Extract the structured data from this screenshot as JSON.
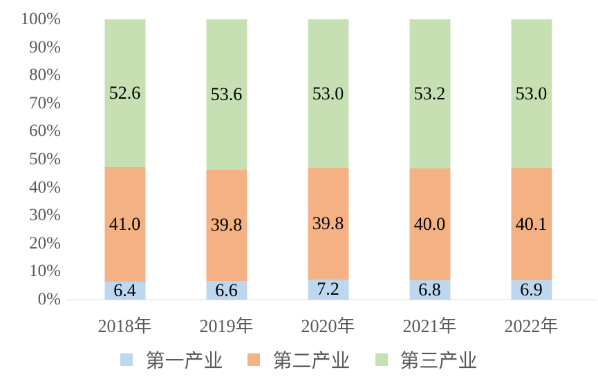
{
  "chart_data": {
    "type": "bar",
    "subtype": "stacked-100-percent",
    "title": "",
    "xlabel": "",
    "ylabel": "",
    "categories": [
      "2018年",
      "2019年",
      "2020年",
      "2021年",
      "2022年"
    ],
    "series": [
      {
        "name": "第一产业",
        "color": "#BDD7EE",
        "values": [
          6.4,
          6.6,
          7.2,
          6.8,
          6.9
        ],
        "labels": [
          "6.4",
          "6.6",
          "7.2",
          "6.8",
          "6.9"
        ]
      },
      {
        "name": "第二产业",
        "color": "#F4B183",
        "values": [
          41.0,
          39.8,
          39.8,
          40.0,
          40.1
        ],
        "labels": [
          "41.0",
          "39.8",
          "39.8",
          "40.0",
          "40.1"
        ]
      },
      {
        "name": "第三产业",
        "color": "#C6E0B4",
        "values": [
          52.6,
          53.6,
          53.0,
          53.2,
          53.0
        ],
        "labels": [
          "52.6",
          "53.6",
          "53.0",
          "53.2",
          "53.0"
        ]
      }
    ],
    "y_axis": {
      "min": 0,
      "max": 100,
      "ticks": [
        {
          "label": "0%",
          "value": 0
        },
        {
          "label": "10%",
          "value": 10
        },
        {
          "label": "20%",
          "value": 20
        },
        {
          "label": "30%",
          "value": 30
        },
        {
          "label": "40%",
          "value": 40
        },
        {
          "label": "50%",
          "value": 50
        },
        {
          "label": "60%",
          "value": 60
        },
        {
          "label": "70%",
          "value": 70
        },
        {
          "label": "80%",
          "value": 80
        },
        {
          "label": "90%",
          "value": 90
        },
        {
          "label": "100%",
          "value": 100
        }
      ]
    },
    "legend": {
      "position": "bottom",
      "entries": [
        "第一产业",
        "第二产业",
        "第三产业"
      ]
    },
    "gridlines": false,
    "colors": {
      "axis_text": "#595959",
      "axis_line": "#D9D9D9",
      "data_label": "#000000",
      "background": "#FFFFFF"
    }
  }
}
